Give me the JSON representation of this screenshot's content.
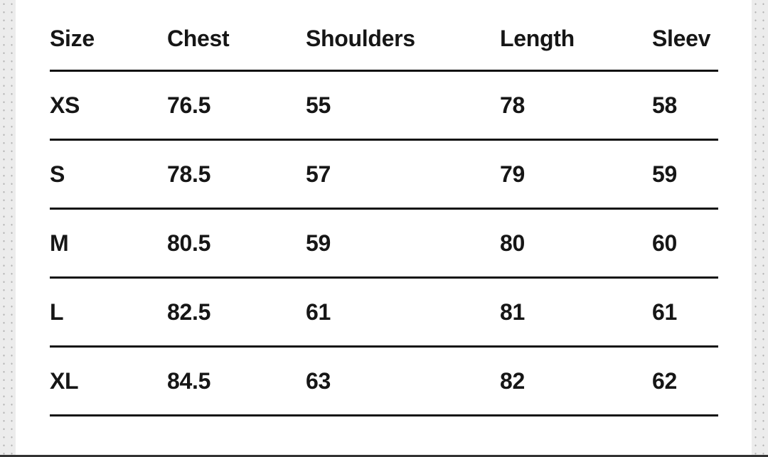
{
  "table": {
    "headers": [
      "Size",
      "Chest",
      "Shoulders",
      "Length",
      "Sleev"
    ],
    "rows": [
      [
        "XS",
        "76.5",
        "55",
        "78",
        "58"
      ],
      [
        "S",
        "78.5",
        "57",
        "79",
        "59"
      ],
      [
        "M",
        "80.5",
        "59",
        "80",
        "60"
      ],
      [
        "L",
        "82.5",
        "61",
        "81",
        "61"
      ],
      [
        "XL",
        "84.5",
        "63",
        "82",
        "62"
      ]
    ]
  }
}
